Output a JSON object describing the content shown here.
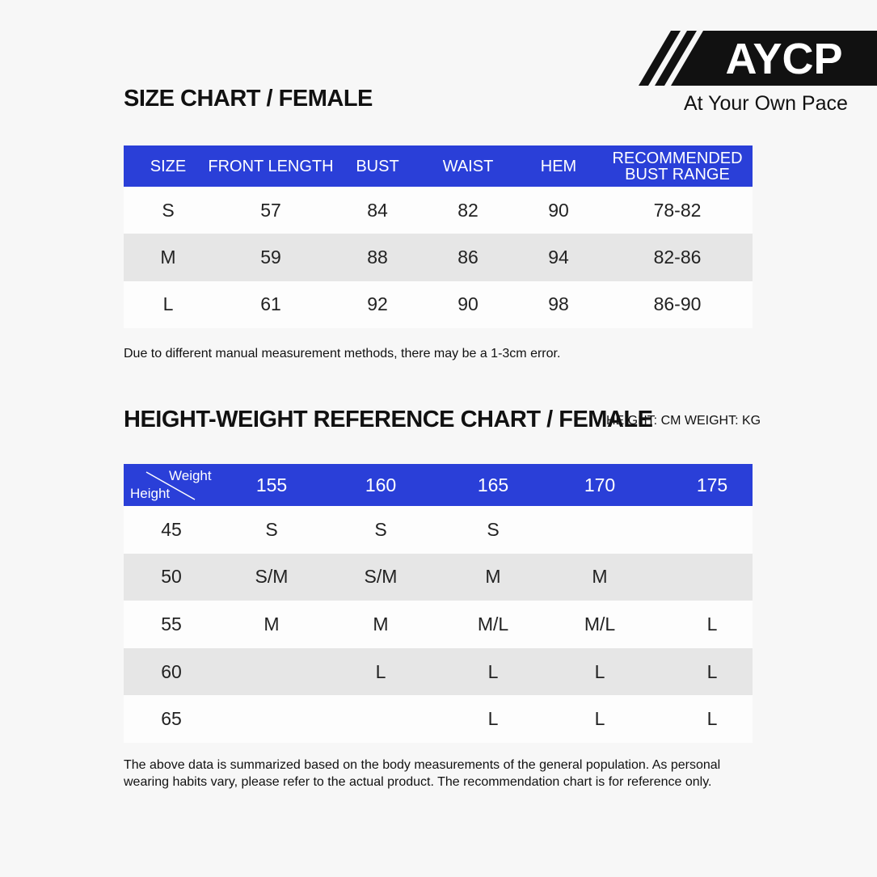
{
  "logo": {
    "mark": "AYCP",
    "tagline": "At Your Own Pace"
  },
  "size_chart": {
    "title": "SIZE CHART / FEMALE",
    "columns": [
      "SIZE",
      "FRONT LENGTH",
      "BUST",
      "WAIST",
      "HEM",
      "RECOMMENDED BUST RANGE"
    ],
    "rows": [
      [
        "S",
        57,
        84,
        82,
        90,
        "78-82"
      ],
      [
        "M",
        59,
        88,
        86,
        94,
        "82-86"
      ],
      [
        "L",
        61,
        92,
        90,
        98,
        "86-90"
      ]
    ],
    "note": "Due to different manual measurement methods, there may be a 1-3cm error."
  },
  "reference_chart": {
    "title": "HEIGHT-WEIGHT REFERENCE CHART / FEMALE",
    "units": "HEIGHT: CM WEIGHT: KG",
    "corner": {
      "top": "Weight",
      "bottom": "Height"
    },
    "columns": [
      155,
      160,
      165,
      170,
      175
    ],
    "rows": [
      [
        45,
        "S",
        "S",
        "S",
        null,
        null
      ],
      [
        50,
        "S/M",
        "S/M",
        "M",
        "M",
        null
      ],
      [
        55,
        "M",
        "M",
        "M/L",
        "M/L",
        "L"
      ],
      [
        60,
        null,
        "L",
        "L",
        "L",
        "L"
      ],
      [
        65,
        null,
        null,
        "L",
        "L",
        "L"
      ]
    ],
    "note": "The above data is summarized based on the body measurements of the general population. As personal wearing habits vary, please refer to the actual product. The recommendation chart is for reference only."
  }
}
